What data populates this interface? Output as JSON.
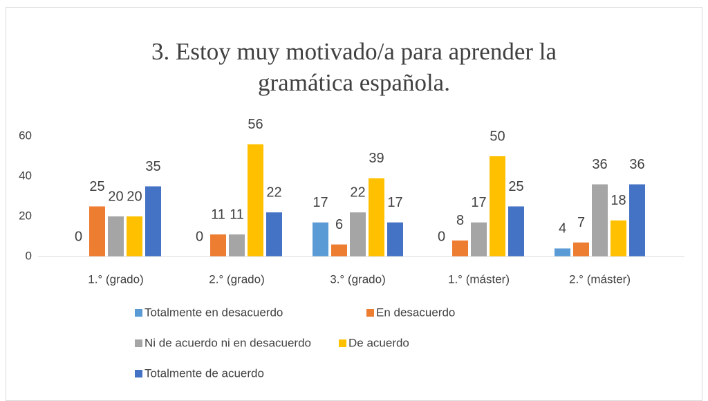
{
  "chart_data": {
    "type": "bar",
    "title": "3. Estoy muy motivado/a para aprender la gramática española.",
    "categories": [
      "1.° (grado)",
      "2.° (grado)",
      "3.° (grado)",
      "1.° (máster)",
      "2.° (máster)"
    ],
    "series": [
      {
        "name": "Totalmente en desacuerdo",
        "color": "#5b9bd5",
        "values": [
          0,
          0,
          17,
          0,
          4
        ]
      },
      {
        "name": "En desacuerdo",
        "color": "#ed7d31",
        "values": [
          25,
          11,
          6,
          8,
          7
        ]
      },
      {
        "name": "Ni de acuerdo ni en desacuerdo",
        "color": "#a5a5a5",
        "values": [
          20,
          11,
          22,
          17,
          36
        ]
      },
      {
        "name": "De acuerdo",
        "color": "#ffc000",
        "values": [
          20,
          56,
          39,
          50,
          18
        ]
      },
      {
        "name": "Totalmente de acuerdo",
        "color": "#4472c4",
        "values": [
          35,
          22,
          17,
          25,
          36
        ]
      }
    ],
    "ylim": [
      0,
      60
    ],
    "yticks": [
      0,
      20,
      40,
      60
    ],
    "grid": false,
    "legend": "bottom"
  }
}
